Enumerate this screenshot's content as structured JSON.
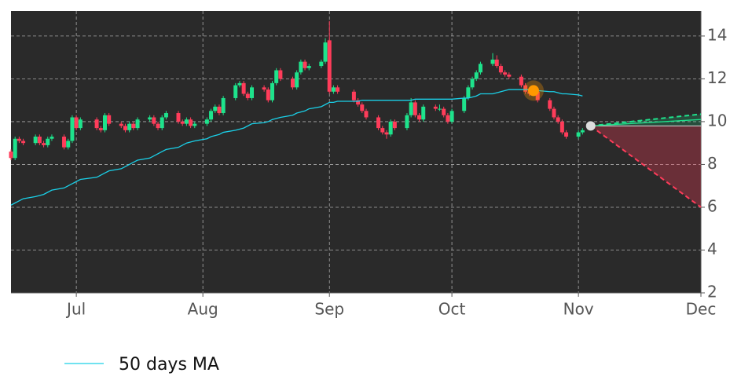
{
  "chart_data": {
    "type": "candlestick",
    "x": [
      "06-15",
      "06-16",
      "06-17",
      "06-18",
      "06-21",
      "06-22",
      "06-23",
      "06-24",
      "06-25",
      "06-28",
      "06-29",
      "06-30",
      "07-01",
      "07-02",
      "07-06",
      "07-07",
      "07-08",
      "07-09",
      "07-12",
      "07-13",
      "07-14",
      "07-15",
      "07-16",
      "07-19",
      "07-20",
      "07-21",
      "07-22",
      "07-23",
      "07-26",
      "07-27",
      "07-28",
      "07-29",
      "07-30",
      "08-02",
      "08-03",
      "08-04",
      "08-05",
      "08-06",
      "08-09",
      "08-10",
      "08-11",
      "08-12",
      "08-13",
      "08-16",
      "08-17",
      "08-18",
      "08-19",
      "08-20",
      "08-23",
      "08-24",
      "08-25",
      "08-26",
      "08-27",
      "08-30",
      "08-31",
      "09-01",
      "09-02",
      "09-03",
      "09-07",
      "09-08",
      "09-09",
      "09-10",
      "09-13",
      "09-14",
      "09-15",
      "09-16",
      "09-17",
      "09-20",
      "09-21",
      "09-22",
      "09-23",
      "09-24",
      "09-27",
      "09-28",
      "09-29",
      "09-30",
      "10-01",
      "10-04",
      "10-05",
      "10-06",
      "10-07",
      "10-08",
      "10-11",
      "10-12",
      "10-13",
      "10-14",
      "10-15",
      "10-18",
      "10-19",
      "10-20",
      "10-21",
      "10-22",
      "10-25",
      "10-26",
      "10-27",
      "10-28",
      "10-29",
      "11-01",
      "11-02"
    ],
    "ohlc": [
      [
        8.6,
        8.7,
        8.2,
        8.3
      ],
      [
        8.3,
        9.3,
        8.2,
        9.2
      ],
      [
        9.2,
        9.3,
        9.0,
        9.1
      ],
      [
        9.1,
        9.2,
        8.9,
        9.0
      ],
      [
        9.0,
        9.4,
        8.9,
        9.3
      ],
      [
        9.3,
        9.4,
        8.9,
        9.0
      ],
      [
        9.0,
        9.1,
        8.8,
        8.9
      ],
      [
        8.9,
        9.3,
        8.8,
        9.2
      ],
      [
        9.2,
        9.4,
        9.1,
        9.3
      ],
      [
        9.3,
        9.4,
        8.7,
        8.8
      ],
      [
        8.8,
        9.2,
        8.7,
        9.1
      ],
      [
        9.1,
        10.3,
        9.0,
        10.2
      ],
      [
        10.2,
        10.3,
        9.6,
        9.7
      ],
      [
        9.7,
        10.2,
        9.6,
        10.1
      ],
      [
        10.1,
        10.2,
        9.6,
        9.7
      ],
      [
        9.7,
        9.8,
        9.5,
        9.6
      ],
      [
        9.6,
        10.4,
        9.5,
        10.3
      ],
      [
        10.3,
        10.4,
        9.8,
        9.9
      ],
      [
        9.9,
        10.0,
        9.7,
        9.8
      ],
      [
        9.8,
        9.9,
        9.5,
        9.6
      ],
      [
        9.6,
        10.0,
        9.5,
        9.9
      ],
      [
        9.9,
        10.0,
        9.6,
        9.7
      ],
      [
        9.7,
        10.2,
        9.6,
        10.1
      ],
      [
        10.1,
        10.3,
        10.0,
        10.2
      ],
      [
        10.2,
        10.3,
        9.8,
        9.9
      ],
      [
        9.9,
        10.0,
        9.6,
        9.7
      ],
      [
        9.7,
        10.3,
        9.6,
        10.2
      ],
      [
        10.2,
        10.5,
        10.1,
        10.4
      ],
      [
        10.4,
        10.5,
        9.9,
        10.0
      ],
      [
        10.0,
        10.1,
        9.8,
        9.9
      ],
      [
        9.9,
        10.2,
        9.8,
        10.1
      ],
      [
        10.1,
        10.2,
        9.7,
        9.8
      ],
      [
        9.8,
        10.0,
        9.7,
        9.9
      ],
      [
        9.9,
        10.2,
        9.8,
        10.1
      ],
      [
        10.1,
        10.6,
        10.0,
        10.5
      ],
      [
        10.5,
        10.8,
        10.4,
        10.7
      ],
      [
        10.7,
        10.8,
        10.3,
        10.4
      ],
      [
        10.4,
        11.2,
        10.3,
        11.1
      ],
      [
        11.1,
        11.8,
        11.0,
        11.7
      ],
      [
        11.7,
        11.9,
        11.6,
        11.8
      ],
      [
        11.8,
        11.9,
        11.2,
        11.3
      ],
      [
        11.3,
        11.4,
        11.0,
        11.1
      ],
      [
        11.1,
        11.7,
        11.0,
        11.6
      ],
      [
        11.6,
        11.7,
        11.4,
        11.5
      ],
      [
        11.5,
        11.6,
        10.9,
        11.0
      ],
      [
        11.0,
        11.9,
        10.9,
        11.8
      ],
      [
        11.8,
        12.5,
        11.7,
        12.4
      ],
      [
        12.4,
        12.5,
        11.9,
        12.0
      ],
      [
        12.0,
        12.1,
        11.5,
        11.6
      ],
      [
        11.6,
        12.4,
        11.5,
        12.3
      ],
      [
        12.3,
        12.9,
        12.2,
        12.8
      ],
      [
        12.8,
        12.9,
        12.4,
        12.5
      ],
      [
        12.5,
        12.7,
        12.4,
        12.6
      ],
      [
        12.6,
        12.9,
        12.5,
        12.8
      ],
      [
        12.8,
        13.9,
        12.7,
        13.7
      ],
      [
        13.8,
        14.7,
        11.3,
        11.4
      ],
      [
        11.4,
        11.7,
        11.3,
        11.6
      ],
      [
        11.6,
        11.7,
        11.3,
        11.4
      ],
      [
        11.4,
        11.5,
        10.9,
        11.0
      ],
      [
        11.0,
        11.1,
        10.7,
        10.8
      ],
      [
        10.8,
        10.9,
        10.4,
        10.5
      ],
      [
        10.5,
        10.6,
        10.1,
        10.2
      ],
      [
        10.2,
        10.3,
        9.6,
        9.7
      ],
      [
        9.7,
        9.8,
        9.4,
        9.5
      ],
      [
        9.5,
        9.6,
        9.2,
        9.4
      ],
      [
        9.4,
        10.1,
        9.3,
        10.0
      ],
      [
        10.0,
        10.1,
        9.6,
        9.7
      ],
      [
        9.7,
        10.4,
        9.6,
        10.3
      ],
      [
        10.3,
        11.1,
        10.2,
        10.9
      ],
      [
        10.9,
        11.0,
        10.2,
        10.3
      ],
      [
        10.3,
        10.4,
        10.0,
        10.1
      ],
      [
        10.1,
        10.8,
        10.0,
        10.7
      ],
      [
        10.7,
        10.8,
        10.5,
        10.6
      ],
      [
        10.6,
        10.8,
        10.5,
        10.6
      ],
      [
        10.6,
        10.7,
        10.2,
        10.3
      ],
      [
        10.3,
        10.4,
        9.9,
        10.0
      ],
      [
        10.0,
        10.6,
        9.9,
        10.5
      ],
      [
        10.5,
        11.2,
        10.4,
        11.1
      ],
      [
        11.1,
        11.7,
        11.0,
        11.6
      ],
      [
        11.6,
        12.1,
        11.5,
        12.0
      ],
      [
        12.0,
        12.4,
        11.9,
        12.3
      ],
      [
        12.3,
        12.8,
        12.2,
        12.7
      ],
      [
        12.7,
        13.2,
        12.6,
        12.9
      ],
      [
        12.9,
        13.1,
        12.5,
        12.6
      ],
      [
        12.6,
        12.7,
        12.2,
        12.3
      ],
      [
        12.3,
        12.4,
        12.1,
        12.2
      ],
      [
        12.2,
        12.3,
        12.0,
        12.1
      ],
      [
        12.1,
        12.2,
        11.6,
        11.7
      ],
      [
        11.7,
        11.8,
        11.3,
        11.4
      ],
      [
        11.4,
        11.5,
        11.2,
        11.3
      ],
      [
        11.3,
        11.5,
        11.2,
        11.4
      ],
      [
        11.4,
        11.5,
        10.9,
        11.0
      ],
      [
        11.0,
        11.1,
        10.5,
        10.6
      ],
      [
        10.6,
        10.7,
        10.1,
        10.2
      ],
      [
        10.2,
        10.3,
        9.9,
        10.0
      ],
      [
        10.0,
        10.1,
        9.4,
        9.5
      ],
      [
        9.5,
        9.6,
        9.2,
        9.3
      ],
      [
        9.3,
        9.6,
        9.2,
        9.5
      ],
      [
        9.5,
        9.7,
        9.4,
        9.6
      ]
    ],
    "up_color": "#1ee38c",
    "down_color": "#ff3c5a",
    "series": [
      {
        "name": "50 days MA",
        "color": "#1ad0e8",
        "values": [
          6.1,
          6.2,
          6.3,
          6.4,
          6.5,
          6.55,
          6.6,
          6.7,
          6.8,
          6.9,
          7.0,
          7.1,
          7.2,
          7.3,
          7.4,
          7.5,
          7.6,
          7.7,
          7.8,
          7.9,
          8.0,
          8.1,
          8.2,
          8.3,
          8.4,
          8.5,
          8.6,
          8.7,
          8.8,
          8.9,
          9.0,
          9.05,
          9.1,
          9.2,
          9.3,
          9.35,
          9.4,
          9.5,
          9.6,
          9.65,
          9.7,
          9.8,
          9.9,
          9.95,
          10.0,
          10.1,
          10.15,
          10.2,
          10.3,
          10.4,
          10.45,
          10.5,
          10.6,
          10.7,
          10.8,
          10.9,
          10.9,
          10.95,
          10.95,
          10.95,
          11.0,
          11.0,
          11.0,
          11.0,
          11.0,
          11.0,
          11.0,
          11.0,
          11.0,
          11.05,
          11.05,
          11.05,
          11.05,
          11.05,
          11.05,
          11.05,
          11.05,
          11.1,
          11.1,
          11.15,
          11.2,
          11.3,
          11.3,
          11.35,
          11.4,
          11.45,
          11.5,
          11.5,
          11.5,
          11.5,
          11.5,
          11.45,
          11.4,
          11.4,
          11.35,
          11.3,
          11.3,
          11.25,
          11.2
        ]
      }
    ],
    "signal": {
      "x": "10-21",
      "value": 11.45,
      "color": "#ff9900"
    },
    "last": {
      "x": "11-04",
      "value": 9.8
    },
    "forecast": {
      "end_x": "12-01",
      "high": 10.35,
      "mid": 10.1,
      "low": 6.0,
      "high_color": "#1ee38c",
      "low_color": "#ff3c5a"
    },
    "xlim": [
      "06-15",
      "12-01"
    ],
    "xticks": [
      {
        "value": "07-01",
        "label": "Jul"
      },
      {
        "value": "08-01",
        "label": "Aug"
      },
      {
        "value": "09-01",
        "label": "Sep"
      },
      {
        "value": "10-01",
        "label": "Oct"
      },
      {
        "value": "11-01",
        "label": "Nov"
      },
      {
        "value": "12-01",
        "label": "Dec"
      }
    ],
    "ylim": [
      2,
      15.17
    ],
    "yticks": [
      2,
      4,
      6,
      8,
      10,
      12,
      14
    ],
    "grid": true
  }
}
